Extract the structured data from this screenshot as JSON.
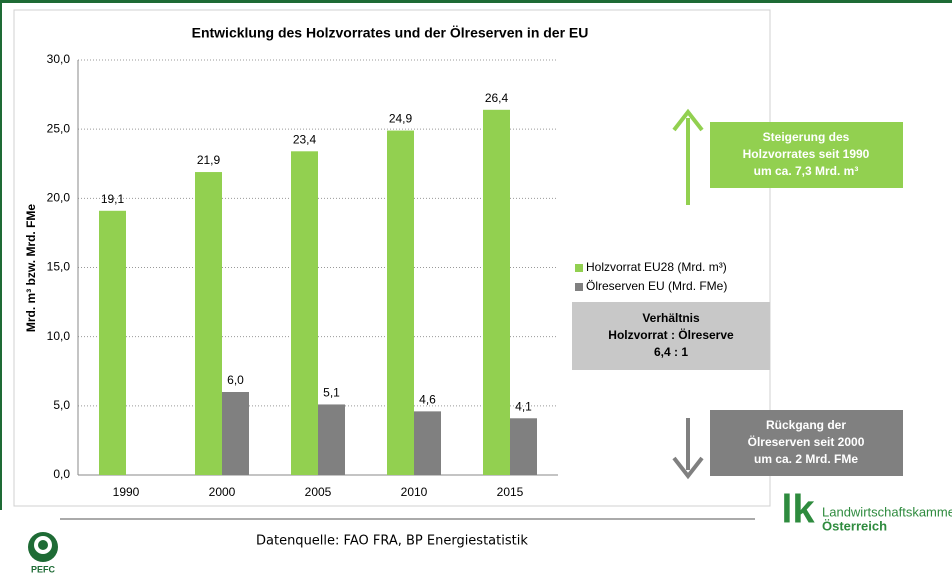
{
  "chart_data": {
    "type": "bar",
    "title": "Entwicklung des Holzvorrates und der Ölreserven in der EU",
    "y_label": "Mrd. m³ bzw. Mrd. FMe",
    "categories": [
      "1990",
      "2000",
      "2005",
      "2010",
      "2015"
    ],
    "series": [
      {
        "name": "Holzvorrat EU28 (Mrd. m³)",
        "color": "#92d050",
        "values": [
          19.1,
          21.9,
          23.4,
          24.9,
          26.4
        ],
        "value_labels": [
          "19,1",
          "21,9",
          "23,4",
          "24,9",
          "26,4"
        ]
      },
      {
        "name": "Ölreserven EU (Mrd. FMe)",
        "color": "#808080",
        "values": [
          null,
          6.0,
          5.1,
          4.6,
          4.1
        ],
        "value_labels": [
          null,
          "6,0",
          "5,1",
          "4,6",
          "4,1"
        ]
      }
    ],
    "ylim": [
      0,
      30
    ],
    "yticks": [
      {
        "value": 0,
        "label": "0,0"
      },
      {
        "value": 5,
        "label": "5,0"
      },
      {
        "value": 10,
        "label": "10,0"
      },
      {
        "value": 15,
        "label": "15,0"
      },
      {
        "value": 20,
        "label": "20,0"
      },
      {
        "value": 25,
        "label": "25,0"
      },
      {
        "value": 30,
        "label": "30,0"
      }
    ],
    "grid": true,
    "legend": "right"
  },
  "ratio_box": {
    "lines": [
      "Verhältnis",
      "Holzvorrat : Ölreserve",
      "6,4   :  1"
    ]
  },
  "increase_box": {
    "lines": [
      "Steigerung des",
      "Holzvorrates seit 1990",
      "um ca. 7,3 Mrd. m³"
    ]
  },
  "decrease_box": {
    "lines": [
      "Rückgang der",
      "Ölreserven seit 2000",
      "um ca. 2 Mrd. FMe"
    ]
  },
  "source": "Datenquelle: FAO FRA, BP Energiestatistik",
  "logo": {
    "mark": "lk",
    "line1": "Landwirtschaftskammer",
    "line2": "Österreich",
    "pefc": "PEFC"
  }
}
